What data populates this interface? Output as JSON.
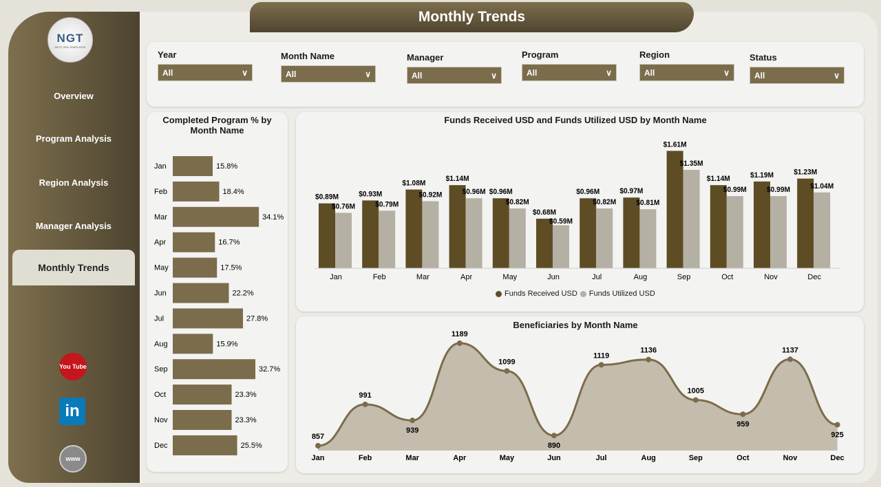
{
  "title": "Monthly Trends",
  "logo": {
    "text": "NGT",
    "subtext": "NEXT GEN TEMPLATES"
  },
  "nav": [
    {
      "label": "Overview"
    },
    {
      "label": "Program Analysis"
    },
    {
      "label": "Region Analysis"
    },
    {
      "label": "Manager Analysis"
    },
    {
      "label": "Monthly Trends",
      "active": true
    }
  ],
  "social": [
    {
      "icon": "youtube-icon",
      "label": "You Tube"
    },
    {
      "icon": "linkedin-icon",
      "label": "in"
    },
    {
      "icon": "website-icon",
      "label": "www"
    }
  ],
  "filters": [
    {
      "label": "Year",
      "value": "All"
    },
    {
      "label": "Month Name",
      "value": "All"
    },
    {
      "label": "Manager",
      "value": "All"
    },
    {
      "label": "Program",
      "value": "All"
    },
    {
      "label": "Region",
      "value": "All"
    },
    {
      "label": "Status",
      "value": "All"
    }
  ],
  "colors": {
    "primary": "#5e4c24",
    "secondary": "#b5b0a4",
    "hbar": "#7b6c4b",
    "line": "#7b6c4b",
    "area": "#c4bdad"
  },
  "chart_data": [
    {
      "type": "bar",
      "orientation": "horizontal",
      "title": "Completed Program % by Month Name",
      "categories": [
        "Jan",
        "Feb",
        "Mar",
        "Apr",
        "May",
        "Jun",
        "Jul",
        "Aug",
        "Sep",
        "Oct",
        "Nov",
        "Dec"
      ],
      "values": [
        15.8,
        18.4,
        34.1,
        16.7,
        17.5,
        22.2,
        27.8,
        15.9,
        32.7,
        23.3,
        23.3,
        25.5
      ],
      "labels": [
        "15.8%",
        "18.4%",
        "34.1%",
        "16.7%",
        "17.5%",
        "22.2%",
        "27.8%",
        "15.9%",
        "32.7%",
        "23.3%",
        "23.3%",
        "25.5%"
      ]
    },
    {
      "type": "bar",
      "title": "Funds Received USD and Funds Utilized USD by Month Name",
      "categories": [
        "Jan",
        "Feb",
        "Mar",
        "Apr",
        "May",
        "Jun",
        "Jul",
        "Aug",
        "Sep",
        "Oct",
        "Nov",
        "Dec"
      ],
      "legend": "bottom",
      "series": [
        {
          "name": "Funds Received USD",
          "values": [
            0.89,
            0.93,
            1.08,
            1.14,
            0.96,
            0.68,
            0.96,
            0.97,
            1.61,
            1.14,
            1.19,
            1.23
          ],
          "labels": [
            "$0.89M",
            "$0.93M",
            "$1.08M",
            "$1.14M",
            "$0.96M",
            "$0.68M",
            "$0.96M",
            "$0.97M",
            "$1.61M",
            "$1.14M",
            "$1.19M",
            "$1.23M"
          ]
        },
        {
          "name": "Funds Utilized USD",
          "values": [
            0.76,
            0.79,
            0.92,
            0.96,
            0.82,
            0.59,
            0.82,
            0.81,
            1.35,
            0.99,
            0.99,
            1.04
          ],
          "labels": [
            "$0.76M",
            "$0.79M",
            "$0.92M",
            "$0.96M",
            "$0.82M",
            "$0.59M",
            "$0.82M",
            "$0.81M",
            "$1.35M",
            "$0.99M",
            "$0.99M",
            "$1.04M"
          ]
        }
      ]
    },
    {
      "type": "area",
      "title": "Beneficiaries by Month Name",
      "categories": [
        "Jan",
        "Feb",
        "Mar",
        "Apr",
        "May",
        "Jun",
        "Jul",
        "Aug",
        "Sep",
        "Oct",
        "Nov",
        "Dec"
      ],
      "values": [
        857,
        991,
        939,
        1189,
        1099,
        890,
        1119,
        1136,
        1005,
        959,
        1137,
        925
      ]
    }
  ]
}
